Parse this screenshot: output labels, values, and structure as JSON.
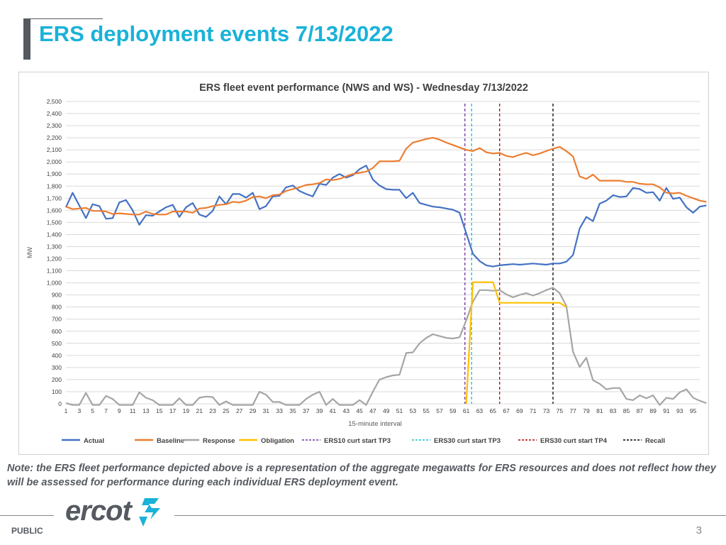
{
  "slide": {
    "title": "ERS deployment events 7/13/2022",
    "note": "Note: the ERS fleet performance depicted above is a representation of the aggregate megawatts for ERS resources and does not reflect how they will be assessed for performance during each individual ERS deployment event.",
    "footer_label": "PUBLIC",
    "logo_text": "ercot",
    "page_number": "3"
  },
  "colors": {
    "title": "#1ab2d8",
    "actual": "#4472c4",
    "baseline": "#ed7d31",
    "response": "#a5a5a5",
    "obligation": "#ffc000",
    "ers10_tp3": "#7030a0",
    "ers30_tp3": "#17becf",
    "ers30_tp4": "#c00000",
    "recall": "#000000",
    "logo_accent": "#1ab2d8"
  },
  "chart_data": {
    "type": "line",
    "title": "ERS fleet event performance (NWS and WS) - Wednesday 7/13/2022",
    "xlabel": "15-minute interval",
    "ylabel": "MW",
    "ylim": [
      0,
      2500
    ],
    "yticks": [
      0,
      100,
      200,
      300,
      400,
      500,
      600,
      700,
      800,
      900,
      1000,
      1100,
      1200,
      1300,
      1400,
      1500,
      1600,
      1700,
      1800,
      1900,
      2000,
      2100,
      2200,
      2300,
      2400,
      2500
    ],
    "ytick_labels": [
      "0",
      "100",
      "200",
      "300",
      "400",
      "500",
      "600",
      "700",
      "800",
      "900",
      "1,000",
      "1,100",
      "1,200",
      "1,300",
      "1,400",
      "1,500",
      "1,600",
      "1,700",
      "1,800",
      "1,900",
      "2,000",
      "2,100",
      "2,200",
      "2,300",
      "2,400",
      "2,500"
    ],
    "xlim": [
      1,
      96
    ],
    "xticks": [
      1,
      3,
      5,
      7,
      9,
      11,
      13,
      15,
      17,
      19,
      21,
      23,
      25,
      27,
      29,
      31,
      33,
      35,
      37,
      39,
      41,
      43,
      45,
      47,
      49,
      51,
      53,
      55,
      57,
      59,
      61,
      63,
      65,
      67,
      69,
      71,
      73,
      75,
      77,
      79,
      81,
      83,
      85,
      87,
      89,
      91,
      93,
      95
    ],
    "grid": true,
    "legend_position": "bottom",
    "series": [
      {
        "name": "Actual",
        "color_key": "actual",
        "values": [
          1625,
          1745,
          1640,
          1535,
          1650,
          1635,
          1530,
          1535,
          1665,
          1685,
          1600,
          1480,
          1560,
          1555,
          1590,
          1625,
          1645,
          1545,
          1625,
          1660,
          1565,
          1545,
          1595,
          1715,
          1650,
          1735,
          1735,
          1705,
          1745,
          1610,
          1635,
          1715,
          1720,
          1790,
          1805,
          1760,
          1735,
          1715,
          1820,
          1810,
          1870,
          1900,
          1870,
          1890,
          1940,
          1970,
          1855,
          1805,
          1775,
          1770,
          1770,
          1700,
          1745,
          1660,
          1645,
          1630,
          1625,
          1615,
          1605,
          1580,
          1410,
          1240,
          1180,
          1145,
          1135,
          1145,
          1150,
          1155,
          1150,
          1155,
          1160,
          1155,
          1150,
          1160,
          1160,
          1175,
          1230,
          1450,
          1545,
          1510,
          1655,
          1680,
          1725,
          1710,
          1715,
          1785,
          1775,
          1745,
          1750,
          1680,
          1785,
          1695,
          1705,
          1625,
          1580,
          1630,
          1640
        ]
      },
      {
        "name": "Baseline",
        "color_key": "baseline",
        "values": [
          1630,
          1610,
          1615,
          1620,
          1595,
          1595,
          1590,
          1570,
          1575,
          1570,
          1565,
          1565,
          1590,
          1570,
          1565,
          1565,
          1590,
          1590,
          1590,
          1580,
          1615,
          1620,
          1635,
          1645,
          1650,
          1670,
          1665,
          1680,
          1710,
          1715,
          1700,
          1725,
          1730,
          1760,
          1775,
          1790,
          1810,
          1815,
          1825,
          1855,
          1850,
          1860,
          1880,
          1900,
          1910,
          1920,
          1950,
          2005,
          2005,
          2005,
          2010,
          2110,
          2160,
          2175,
          2190,
          2200,
          2185,
          2160,
          2140,
          2120,
          2100,
          2090,
          2115,
          2080,
          2070,
          2075,
          2050,
          2040,
          2060,
          2075,
          2055,
          2070,
          2090,
          2110,
          2125,
          2090,
          2045,
          1880,
          1860,
          1895,
          1845,
          1845,
          1845,
          1845,
          1835,
          1835,
          1820,
          1815,
          1815,
          1790,
          1745,
          1740,
          1745,
          1720,
          1700,
          1680,
          1670
        ]
      },
      {
        "name": "Response",
        "color_key": "response",
        "values": [
          5,
          -10,
          -10,
          90,
          -10,
          -10,
          65,
          40,
          -10,
          -10,
          -10,
          95,
          50,
          30,
          -10,
          -10,
          -10,
          45,
          -10,
          -10,
          50,
          60,
          55,
          -10,
          20,
          -10,
          -10,
          -10,
          -10,
          100,
          75,
          15,
          15,
          -10,
          -10,
          -10,
          40,
          75,
          100,
          -10,
          40,
          -10,
          -10,
          -10,
          30,
          -10,
          100,
          200,
          220,
          235,
          240,
          420,
          425,
          500,
          545,
          575,
          560,
          545,
          540,
          550,
          690,
          845,
          940,
          940,
          935,
          940,
          905,
          880,
          900,
          915,
          895,
          915,
          940,
          960,
          915,
          810,
          430,
          305,
          380,
          195,
          165,
          120,
          130,
          130,
          40,
          30,
          70,
          45,
          70,
          -10,
          50,
          40,
          95,
          120,
          50,
          25,
          5
        ]
      },
      {
        "name": "Obligation",
        "color_key": "obligation",
        "values": [
          0,
          0,
          0,
          0,
          0,
          0,
          0,
          0,
          0,
          0,
          0,
          0,
          0,
          0,
          0,
          0,
          0,
          0,
          0,
          0,
          0,
          0,
          0,
          0,
          0,
          0,
          0,
          0,
          0,
          0,
          0,
          0,
          0,
          0,
          0,
          0,
          0,
          0,
          0,
          0,
          0,
          0,
          0,
          0,
          0,
          0,
          0,
          0,
          0,
          0,
          0,
          0,
          0,
          0,
          0,
          0,
          0,
          0,
          0,
          0,
          0,
          1005,
          1005,
          1005,
          1005,
          835,
          835,
          835,
          835,
          835,
          835,
          835,
          835,
          835,
          835,
          800,
          0,
          0,
          0,
          0,
          0,
          0,
          0,
          0,
          0,
          0,
          0,
          0,
          0,
          0,
          0,
          0,
          0,
          0,
          0,
          0,
          0
        ],
        "visible_range": [
          61,
          76
        ]
      }
    ],
    "vertical_markers": [
      {
        "name": "ERS10 curt start TP3",
        "x": 60.8,
        "color_key": "ers10_tp3"
      },
      {
        "name": "ERS30 curt start TP3",
        "x": 61.8,
        "color_key": "ers30_tp3"
      },
      {
        "name": "ERS30 curt start TP4",
        "x": 66.0,
        "color_key": "ers30_tp4"
      },
      {
        "name": "Recall",
        "x": 74.0,
        "color_key": "recall"
      }
    ]
  }
}
